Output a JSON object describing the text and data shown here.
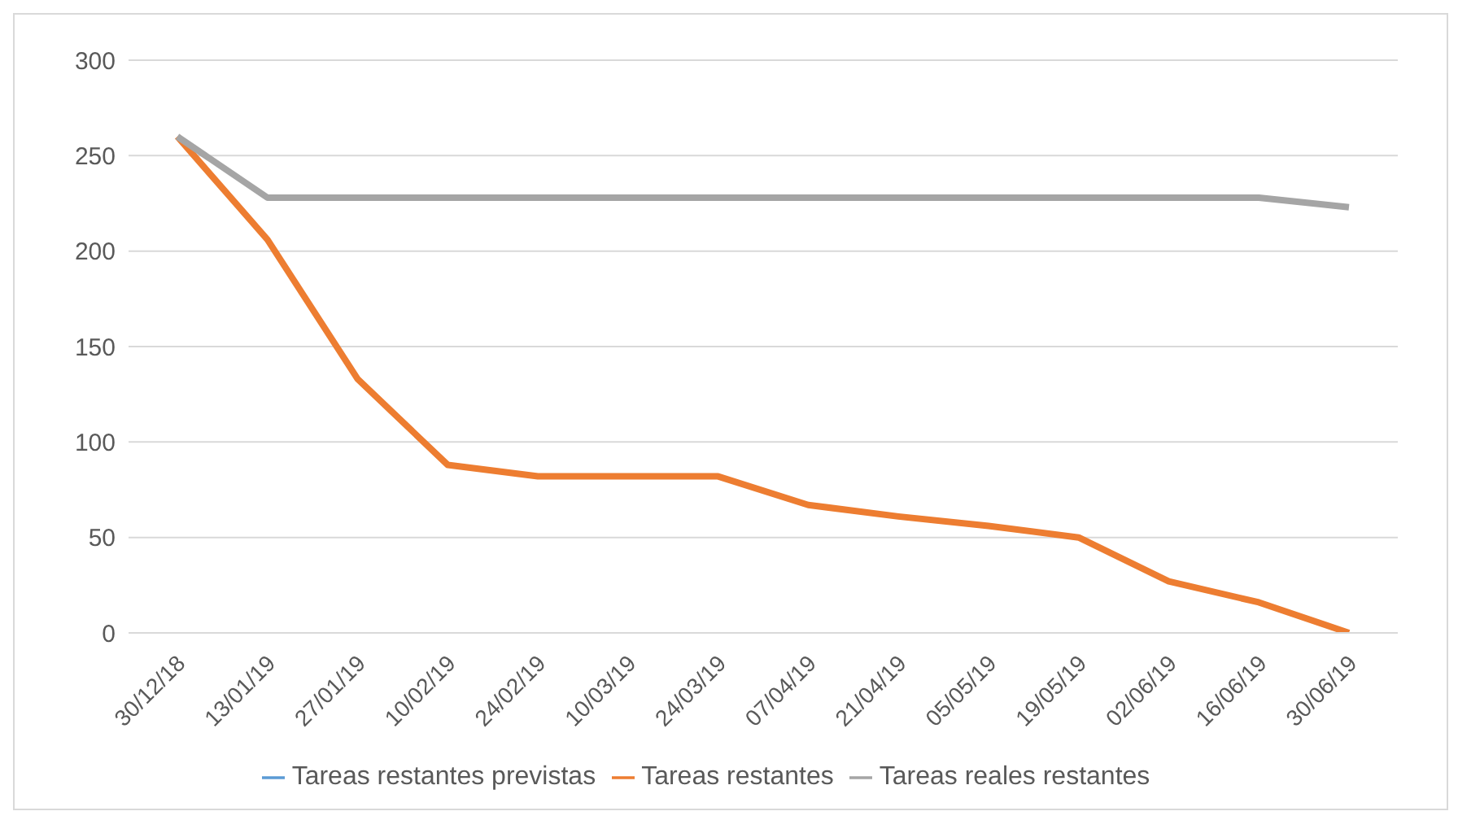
{
  "chart_data": {
    "type": "line",
    "categories": [
      "30/12/18",
      "13/01/19",
      "27/01/19",
      "10/02/19",
      "24/02/19",
      "10/03/19",
      "24/03/19",
      "07/04/19",
      "21/04/19",
      "05/05/19",
      "19/05/19",
      "02/06/19",
      "16/06/19",
      "30/06/19"
    ],
    "series": [
      {
        "name": "Tareas restantes previstas",
        "color": "#5b9bd5",
        "values": [
          null,
          null,
          null,
          null,
          null,
          null,
          null,
          null,
          null,
          null,
          null,
          null,
          null,
          null
        ]
      },
      {
        "name": "Tareas restantes",
        "color": "#ed7d31",
        "values": [
          260,
          206,
          133,
          88,
          82,
          82,
          82,
          67,
          61,
          56,
          50,
          27,
          16,
          0
        ]
      },
      {
        "name": "Tareas reales restantes",
        "color": "#a5a5a5",
        "values": [
          260,
          228,
          228,
          228,
          228,
          228,
          228,
          228,
          228,
          228,
          228,
          228,
          228,
          223
        ]
      }
    ],
    "ylim": [
      0,
      300
    ],
    "yticks": [
      0,
      50,
      100,
      150,
      200,
      250,
      300
    ],
    "grid": "y",
    "legend": "bottom",
    "marker": "none",
    "line_style": "solid"
  }
}
